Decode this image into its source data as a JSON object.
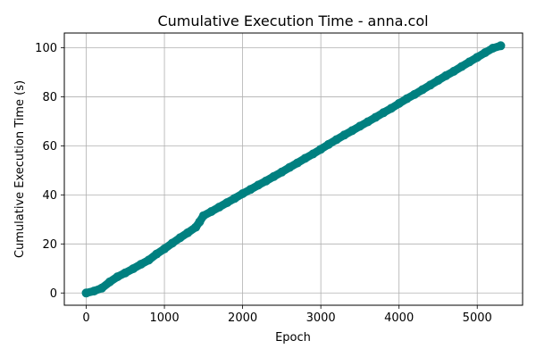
{
  "chart_data": {
    "type": "scatter",
    "title": "Cumulative Execution Time - anna.col",
    "xlabel": "Epoch",
    "ylabel": "Cumulative Execution Time (s)",
    "xlim": [
      -280,
      5580
    ],
    "ylim": [
      -5,
      106
    ],
    "xticks": [
      0,
      1000,
      2000,
      3000,
      4000,
      5000
    ],
    "yticks": [
      0,
      20,
      40,
      60,
      80,
      100
    ],
    "grid": true,
    "series": [
      {
        "color": "#008080",
        "points": [
          [
            0,
            0
          ],
          [
            100,
            0.8
          ],
          [
            200,
            2.0
          ],
          [
            300,
            4.5
          ],
          [
            400,
            6.6
          ],
          [
            500,
            8.2
          ],
          [
            600,
            9.9
          ],
          [
            700,
            11.7
          ],
          [
            800,
            13.4
          ],
          [
            900,
            15.9
          ],
          [
            1000,
            18.0
          ],
          [
            1100,
            20.3
          ],
          [
            1200,
            22.5
          ],
          [
            1300,
            24.6
          ],
          [
            1400,
            26.8
          ],
          [
            1450,
            29.0
          ],
          [
            1500,
            31.5
          ],
          [
            1600,
            33.2
          ],
          [
            1700,
            35.0
          ],
          [
            1800,
            36.8
          ],
          [
            1900,
            38.6
          ],
          [
            2000,
            40.5
          ],
          [
            2100,
            42.2
          ],
          [
            2200,
            44.0
          ],
          [
            2300,
            45.7
          ],
          [
            2400,
            47.5
          ],
          [
            2500,
            49.3
          ],
          [
            2600,
            51.2
          ],
          [
            2700,
            53.0
          ],
          [
            2800,
            54.9
          ],
          [
            2900,
            56.7
          ],
          [
            3000,
            58.6
          ],
          [
            3100,
            60.6
          ],
          [
            3200,
            62.5
          ],
          [
            3300,
            64.4
          ],
          [
            3400,
            66.2
          ],
          [
            3500,
            68.0
          ],
          [
            3600,
            69.8
          ],
          [
            3700,
            71.6
          ],
          [
            3800,
            73.5
          ],
          [
            3900,
            75.3
          ],
          [
            4000,
            77.3
          ],
          [
            4100,
            79.2
          ],
          [
            4200,
            81.0
          ],
          [
            4300,
            82.9
          ],
          [
            4400,
            84.8
          ],
          [
            4500,
            86.7
          ],
          [
            4600,
            88.6
          ],
          [
            4700,
            90.4
          ],
          [
            4800,
            92.3
          ],
          [
            4900,
            94.2
          ],
          [
            5000,
            96.1
          ],
          [
            5100,
            98.0
          ],
          [
            5200,
            99.8
          ],
          [
            5300,
            100.8
          ]
        ]
      }
    ]
  }
}
